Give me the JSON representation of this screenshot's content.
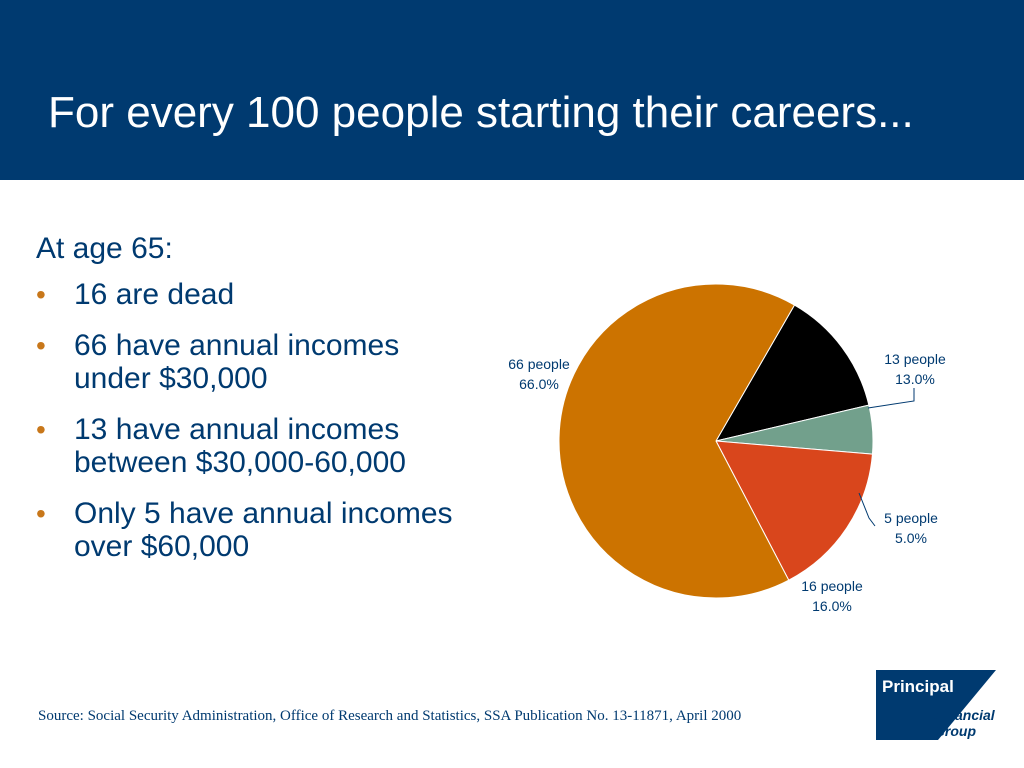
{
  "slide": {
    "title": "For every 100 people starting their careers...",
    "intro": "At age 65:",
    "bullets": [
      "16 are dead",
      "66 have annual incomes under $30,000",
      "13 have annual incomes between $30,000-60,000",
      "Only 5 have annual incomes over $60,000"
    ],
    "source": "Source: Social Security Administration, Office of Research and Statistics, SSA Publication No. 13-11871, April 2000",
    "logo": {
      "line1": "Principal",
      "line2": "Financial",
      "line3": "Group"
    }
  },
  "colors": {
    "header": "#003a70",
    "text": "#003a70",
    "bullet": "#c8771a"
  },
  "chart_data": {
    "type": "pie",
    "title": "",
    "slices": [
      {
        "people_label": "13 people",
        "pct_label": "13.0%",
        "value": 13,
        "color": "#000000"
      },
      {
        "people_label": "5 people",
        "pct_label": "5.0%",
        "value": 5,
        "color": "#72a08c"
      },
      {
        "people_label": "16 people",
        "pct_label": "16.0%",
        "value": 16,
        "color": "#d9461c"
      },
      {
        "people_label": "66 people",
        "pct_label": "66.0%",
        "value": 66,
        "color": "#cc7300"
      }
    ],
    "start_angle_deg": 30,
    "direction": "clockwise"
  }
}
